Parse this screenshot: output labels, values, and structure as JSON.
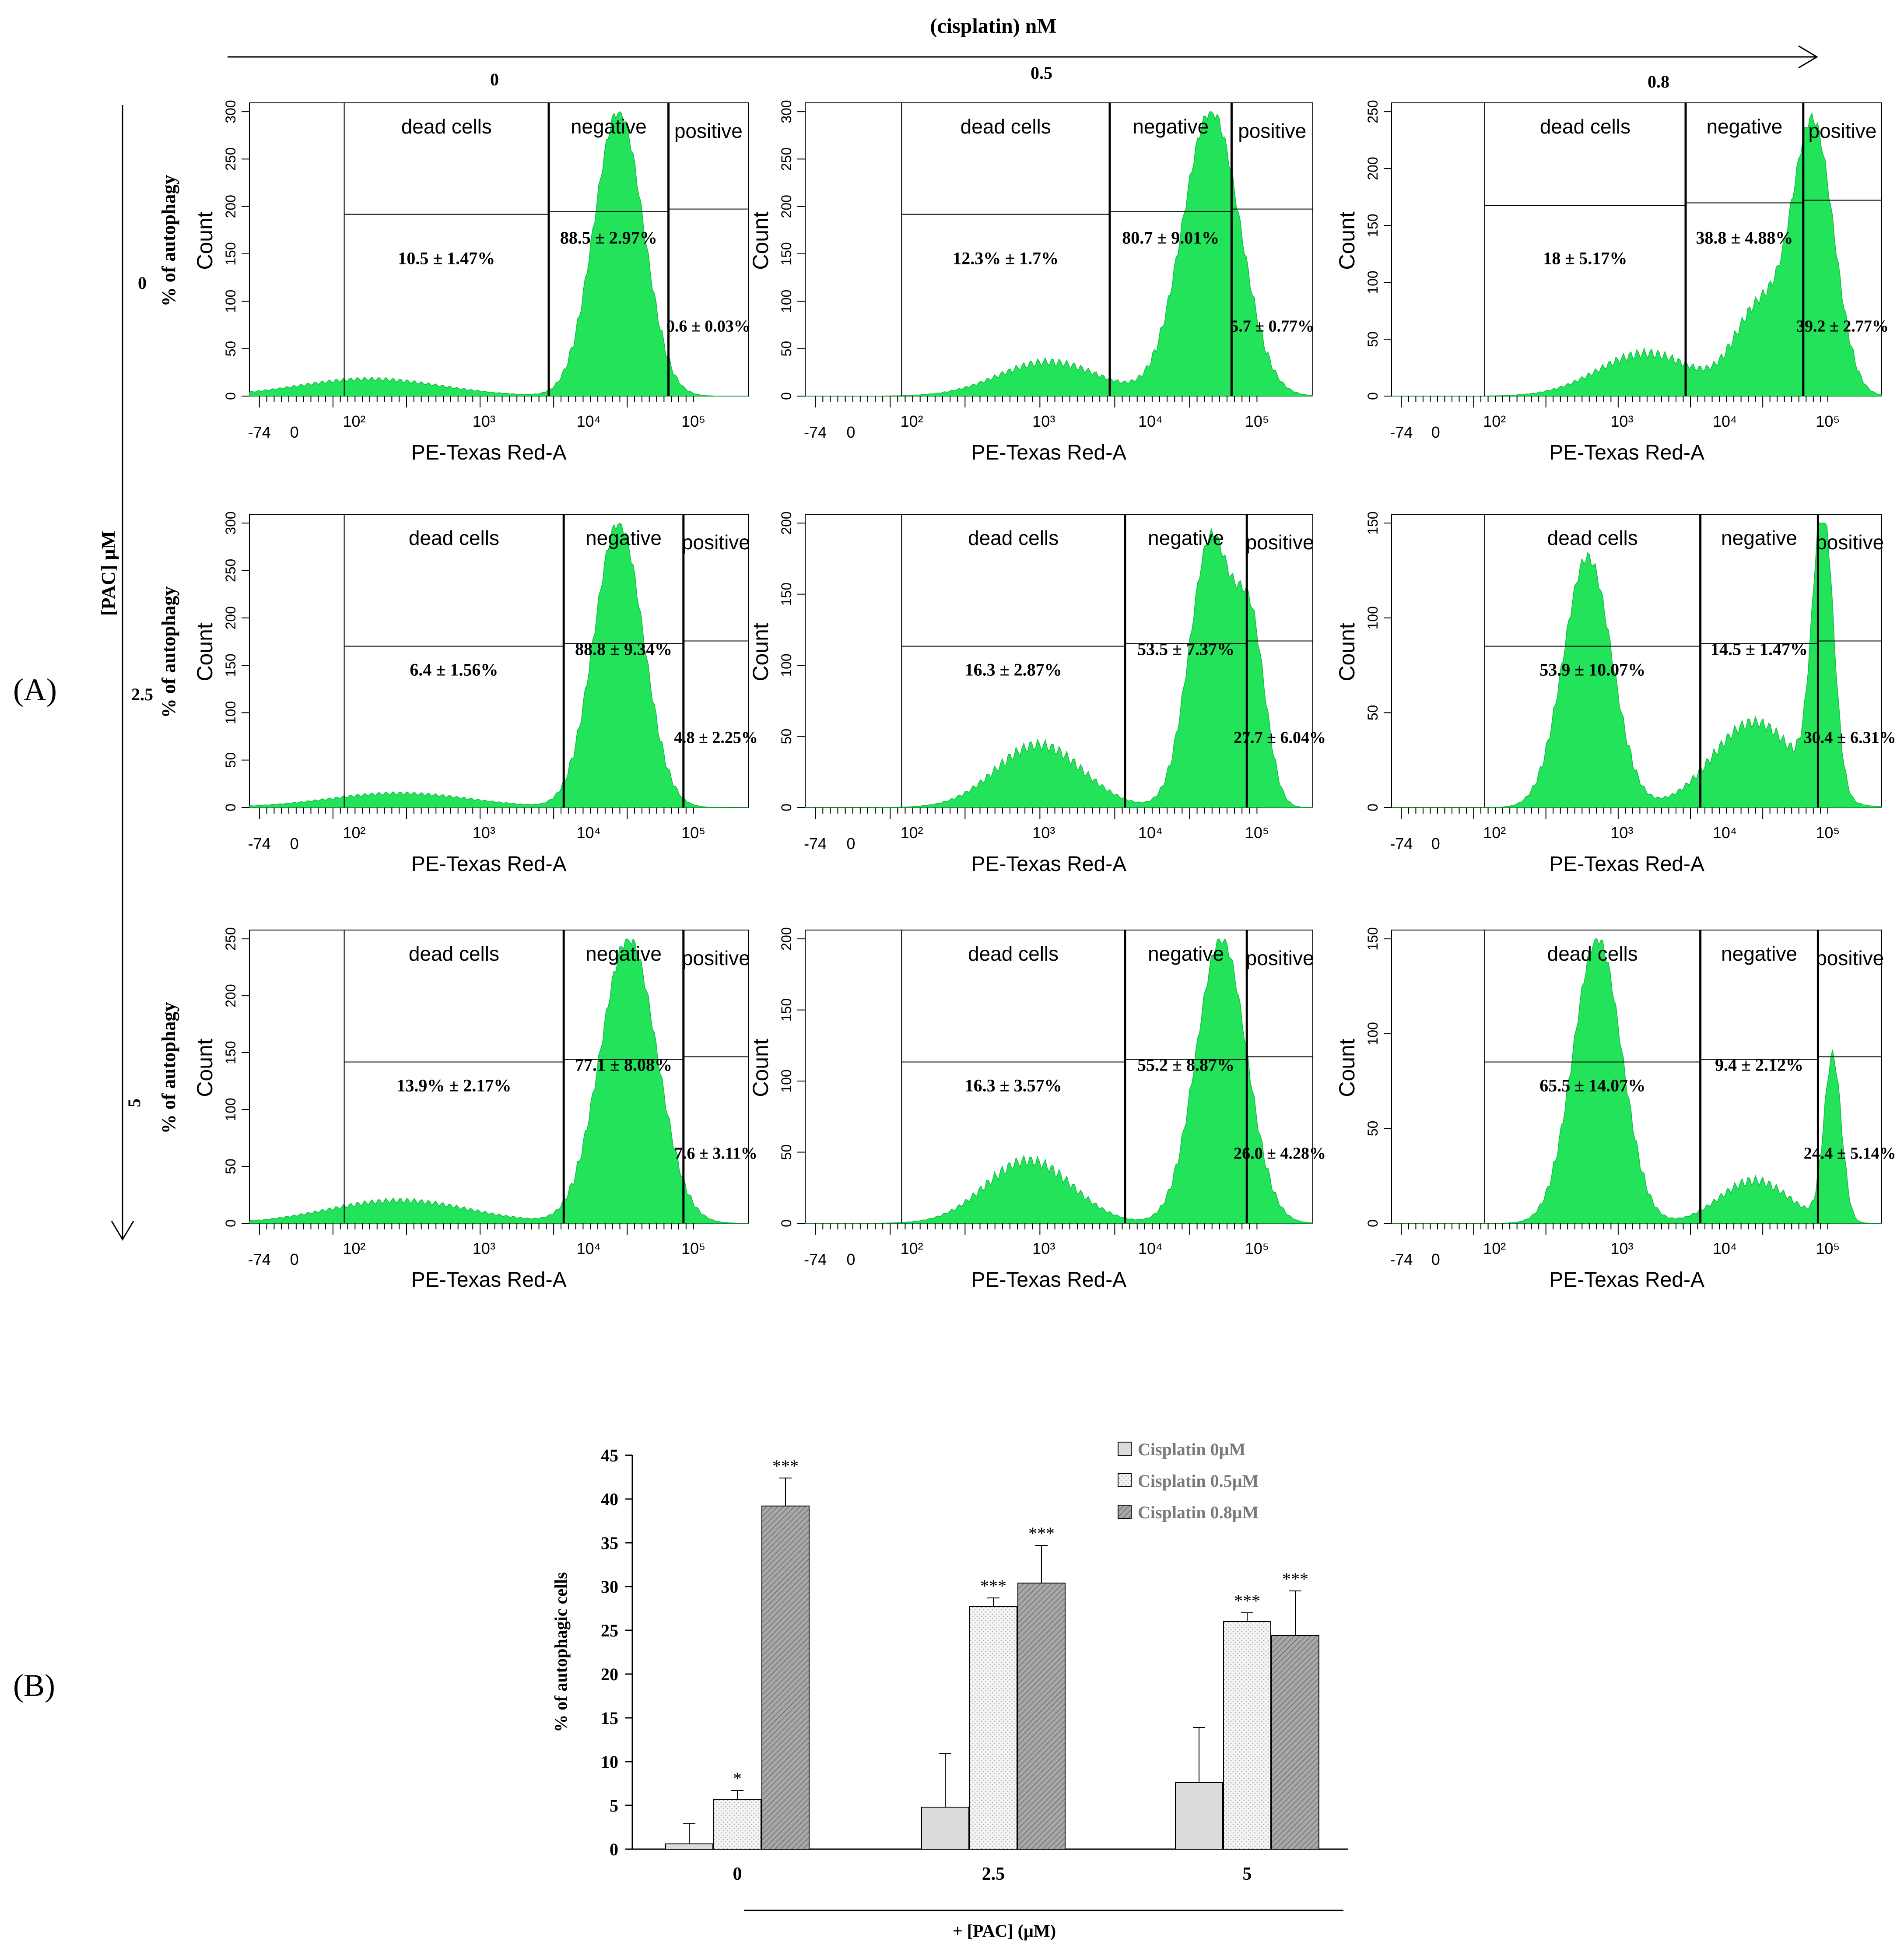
{
  "figure": {
    "panel_a_label": "(A)",
    "panel_b_label": "(B)",
    "cisplatin_axis_label": "(cisplatin) nM",
    "pac_axis_label": "[PAC]  µM",
    "col_labels": [
      "0",
      "0.5",
      "0.8"
    ],
    "row_labels": [
      "0",
      "2.5",
      "5"
    ]
  },
  "histograms": {
    "gate_names": [
      "dead cells",
      "negative",
      "positive"
    ],
    "xlabel": "PE-Texas Red-A",
    "ylabel": "Count",
    "ylabel_overlay": "%  of autophagy",
    "x_tick_labels": [
      "-74",
      "0",
      "10²",
      "10³",
      "10⁴",
      "10⁵"
    ],
    "panels": [
      {
        "row": 0,
        "col": 0,
        "ymax": 300,
        "yticks": [
          "0",
          "50",
          "100",
          "150",
          "200",
          "250",
          "300"
        ],
        "dead": "10.5 ± 1.47%",
        "neg": "88.5 ± 2.97%",
        "pos": "0.6 ± 0.03%",
        "show_overlay": true
      },
      {
        "row": 0,
        "col": 1,
        "ymax": 300,
        "yticks": [
          "0",
          "50",
          "100",
          "150",
          "200",
          "250",
          "300"
        ],
        "dead": "12.3% ± 1.7%",
        "neg": "80.7 ± 9.01%",
        "pos": "5.7 ± 0.77%",
        "show_overlay": false
      },
      {
        "row": 0,
        "col": 2,
        "ymax": 250,
        "yticks": [
          "0",
          "50",
          "100",
          "150",
          "200",
          "250"
        ],
        "dead": "18 ± 5.17%",
        "neg": "38.8 ± 4.88%",
        "pos": "39.2 ± 2.77%",
        "show_overlay": false
      },
      {
        "row": 1,
        "col": 0,
        "ymax": 300,
        "yticks": [
          "0",
          "50",
          "100",
          "150",
          "200",
          "250",
          "300"
        ],
        "dead": "6.4 ± 1.56%",
        "neg": "88.8 ± 9.34%",
        "pos": "4.8 ± 2.25%",
        "show_overlay": true
      },
      {
        "row": 1,
        "col": 1,
        "ymax": 200,
        "yticks": [
          "0",
          "50",
          "100",
          "150",
          "200"
        ],
        "dead": "16.3 ± 2.87%",
        "neg": "53.5 ± 7.37%",
        "pos": "27.7 ± 6.04%",
        "show_overlay": false
      },
      {
        "row": 1,
        "col": 2,
        "ymax": 150,
        "yticks": [
          "0",
          "50",
          "100",
          "150"
        ],
        "dead": "53.9 ± 10.07%",
        "neg": "14.5 ± 1.47%",
        "pos": "30.4 ± 6.31%",
        "show_overlay": false
      },
      {
        "row": 2,
        "col": 0,
        "ymax": 250,
        "yticks": [
          "0",
          "50",
          "100",
          "150",
          "200",
          "250"
        ],
        "dead": "13.9% ± 2.17%",
        "neg": "77.1 ± 8.08%",
        "pos": "7.6 ± 3.11%",
        "show_overlay": true
      },
      {
        "row": 2,
        "col": 1,
        "ymax": 200,
        "yticks": [
          "0",
          "50",
          "100",
          "150",
          "200"
        ],
        "dead": "16.3 ± 3.57%",
        "neg": "55.2 ± 8.87%",
        "pos": "26.0 ± 4.28%",
        "show_overlay": false
      },
      {
        "row": 2,
        "col": 2,
        "ymax": 150,
        "yticks": [
          "0",
          "50",
          "100",
          "150"
        ],
        "dead": "65.5 ± 14.07%",
        "neg": "9.4 ± 2.12%",
        "pos": "24.4 ± 5.14%",
        "show_overlay": false
      }
    ]
  },
  "chart_data": {
    "type": "bar",
    "title": "",
    "xlabel": "+ [PAC]  (µM)",
    "ylabel": "% of autophagic cells",
    "ylim": [
      0,
      45
    ],
    "yticks": [
      0,
      5,
      10,
      15,
      20,
      25,
      30,
      35,
      40,
      45
    ],
    "categories": [
      "0",
      "2.5",
      "5"
    ],
    "series": [
      {
        "name": "Cisplatin 0µM",
        "values": [
          0.6,
          4.8,
          7.6
        ],
        "errors": [
          2.3,
          6.1,
          6.3
        ],
        "stars": [
          "",
          "",
          ""
        ],
        "color": "#dcdcdc"
      },
      {
        "name": "Cisplatin 0.5µM",
        "values": [
          5.7,
          27.7,
          26.0
        ],
        "errors": [
          1.0,
          1.0,
          1.0
        ],
        "stars": [
          "*",
          "***",
          "***"
        ],
        "color": "#f3f3f3"
      },
      {
        "name": "Cisplatin 0.8µM",
        "values": [
          39.2,
          30.4,
          24.4
        ],
        "errors": [
          3.2,
          4.3,
          5.1
        ],
        "stars": [
          "***",
          "***",
          "***"
        ],
        "color": "#9a9a9a"
      }
    ],
    "legend_position": "top-right"
  }
}
